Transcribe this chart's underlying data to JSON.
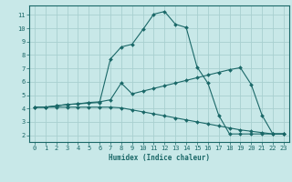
{
  "title": "",
  "xlabel": "Humidex (Indice chaleur)",
  "bg_color": "#c8e8e8",
  "line_color": "#1a6868",
  "grid_color": "#a8d0d0",
  "xlim": [
    -0.5,
    23.5
  ],
  "ylim": [
    1.5,
    11.7
  ],
  "xticks": [
    0,
    1,
    2,
    3,
    4,
    5,
    6,
    7,
    8,
    9,
    10,
    11,
    12,
    13,
    14,
    15,
    16,
    17,
    18,
    19,
    20,
    21,
    22,
    23
  ],
  "yticks": [
    2,
    3,
    4,
    5,
    6,
    7,
    8,
    9,
    10,
    11
  ],
  "curve1_x": [
    0,
    1,
    2,
    3,
    4,
    5,
    6,
    7,
    8,
    9,
    10,
    11,
    12,
    13,
    14,
    15,
    16,
    17,
    18,
    19,
    20,
    21,
    22,
    23
  ],
  "curve1_y": [
    4.1,
    4.1,
    4.2,
    4.3,
    4.35,
    4.4,
    4.45,
    7.7,
    8.6,
    8.8,
    9.9,
    11.05,
    11.25,
    10.3,
    10.05,
    7.1,
    5.9,
    3.5,
    2.1,
    2.1,
    2.1,
    2.1,
    2.1,
    2.1
  ],
  "curve2_x": [
    0,
    1,
    2,
    3,
    4,
    5,
    6,
    7,
    8,
    9,
    10,
    11,
    12,
    13,
    14,
    15,
    16,
    17,
    18,
    19,
    20,
    21,
    22,
    23
  ],
  "curve2_y": [
    4.1,
    4.1,
    4.2,
    4.3,
    4.35,
    4.45,
    4.5,
    4.65,
    5.9,
    5.1,
    5.3,
    5.5,
    5.7,
    5.9,
    6.1,
    6.3,
    6.5,
    6.7,
    6.9,
    7.05,
    5.8,
    3.5,
    2.1,
    2.1
  ],
  "curve3_x": [
    0,
    1,
    2,
    3,
    4,
    5,
    6,
    7,
    8,
    9,
    10,
    11,
    12,
    13,
    14,
    15,
    16,
    17,
    18,
    19,
    20,
    21,
    22,
    23
  ],
  "curve3_y": [
    4.1,
    4.1,
    4.1,
    4.1,
    4.1,
    4.1,
    4.1,
    4.1,
    4.05,
    3.9,
    3.75,
    3.6,
    3.45,
    3.3,
    3.15,
    3.0,
    2.85,
    2.7,
    2.55,
    2.4,
    2.3,
    2.2,
    2.1,
    2.1
  ]
}
